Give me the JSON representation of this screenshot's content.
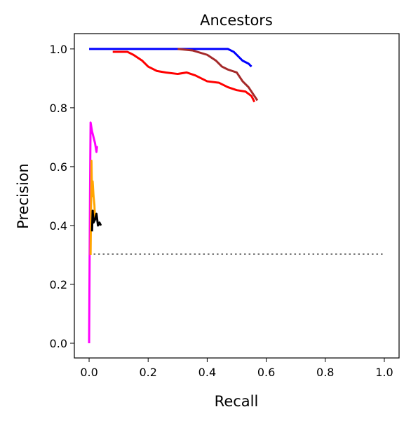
{
  "chart_data": {
    "type": "line",
    "title": "Ancestors",
    "x_label": "Recall",
    "y_label": "Precision",
    "xlim": [
      -0.05,
      1.05
    ],
    "ylim": [
      -0.05,
      1.052
    ],
    "xticks": [
      {
        "value": 0,
        "label": "0.0"
      },
      {
        "value": 0.2,
        "label": "0.2"
      },
      {
        "value": 0.4,
        "label": "0.4"
      },
      {
        "value": 0.6,
        "label": "0.6"
      },
      {
        "value": 0.8,
        "label": "0.8"
      },
      {
        "value": 1,
        "label": "1.0"
      }
    ],
    "yticks": [
      {
        "value": 0,
        "label": "0.0"
      },
      {
        "value": 0.2,
        "label": "0.2"
      },
      {
        "value": 0.4,
        "label": "0.4"
      },
      {
        "value": 0.6,
        "label": "0.6"
      },
      {
        "value": 0.8,
        "label": "0.8"
      },
      {
        "value": 1,
        "label": "1.0"
      }
    ],
    "series": [
      {
        "color": "#808080",
        "linestyle": "dotted",
        "x": [
          0,
          1
        ],
        "values": [
          0.303,
          0.303
        ]
      },
      {
        "color": "#0000ff",
        "x": [
          0,
          0.46,
          0.47,
          0.49,
          0.5,
          0.52,
          0.54,
          0.55
        ],
        "values": [
          1.0,
          1.0,
          1.0,
          0.99,
          0.98,
          0.96,
          0.95,
          0.94
        ]
      },
      {
        "color": "#a52a2a",
        "x": [
          0.3,
          0.35,
          0.4,
          0.43,
          0.45,
          0.47,
          0.5,
          0.52,
          0.54,
          0.56,
          0.57
        ],
        "values": [
          1.0,
          0.995,
          0.98,
          0.96,
          0.94,
          0.93,
          0.92,
          0.89,
          0.87,
          0.84,
          0.825
        ]
      },
      {
        "color": "#ff0000",
        "x": [
          0.08,
          0.13,
          0.15,
          0.18,
          0.2,
          0.23,
          0.26,
          0.3,
          0.33,
          0.36,
          0.4,
          0.44,
          0.47,
          0.5,
          0.53,
          0.55,
          0.56
        ],
        "values": [
          0.99,
          0.99,
          0.98,
          0.96,
          0.94,
          0.925,
          0.92,
          0.915,
          0.92,
          0.91,
          0.89,
          0.885,
          0.87,
          0.86,
          0.855,
          0.84,
          0.82
        ]
      },
      {
        "color": "#ff00ff",
        "x": [
          0,
          0.003,
          0.005,
          0.01,
          0.015,
          0.02,
          0.025,
          0.027
        ],
        "values": [
          0,
          0.5,
          0.75,
          0.72,
          0.7,
          0.68,
          0.65,
          0.67
        ]
      },
      {
        "color": "#ffa500",
        "x": [
          0.005,
          0.008,
          0.01,
          0.012,
          0.015,
          0.018,
          0.02
        ],
        "values": [
          0.3,
          0.62,
          0.5,
          0.55,
          0.5,
          0.47,
          0.42
        ]
      },
      {
        "color": "#000000",
        "x": [
          0.01,
          0.012,
          0.015,
          0.02,
          0.025,
          0.03,
          0.035,
          0.04
        ],
        "values": [
          0.38,
          0.45,
          0.41,
          0.42,
          0.44,
          0.4,
          0.41,
          0.4
        ]
      }
    ]
  }
}
